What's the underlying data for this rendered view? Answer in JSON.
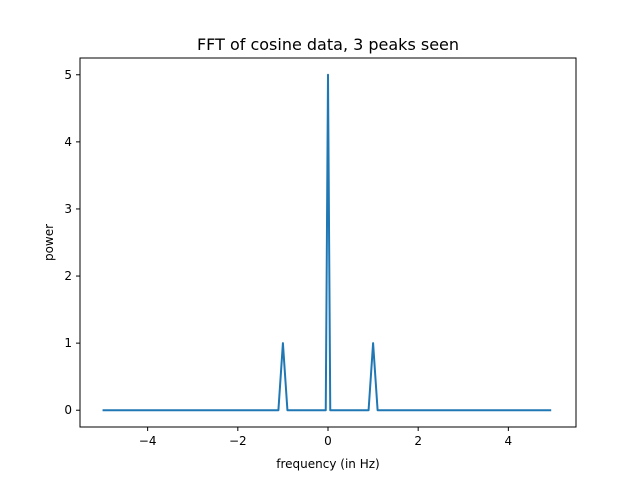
{
  "chart_data": {
    "type": "line",
    "title": "FFT of cosine data, 3 peaks seen",
    "xlabel": "frequency (in Hz)",
    "ylabel": "power",
    "xlim": [
      -5.5,
      5.5
    ],
    "ylim": [
      -0.25,
      5.25
    ],
    "xticks": [
      -4,
      -2,
      0,
      2,
      4
    ],
    "xtick_labels": [
      "−4",
      "−2",
      "0",
      "2",
      "4"
    ],
    "yticks": [
      0,
      1,
      2,
      3,
      4,
      5
    ],
    "ytick_labels": [
      "0",
      "1",
      "2",
      "3",
      "4",
      "5"
    ],
    "grid": false,
    "series": [
      {
        "name": "power",
        "color": "#1f77b4",
        "x": [
          -5.0,
          -1.1,
          -1.0,
          -0.9,
          -0.05,
          0.0,
          0.05,
          0.9,
          1.0,
          1.1,
          4.95
        ],
        "y": [
          0,
          0,
          1,
          0,
          0,
          5,
          0,
          0,
          1,
          0,
          0
        ]
      }
    ]
  }
}
